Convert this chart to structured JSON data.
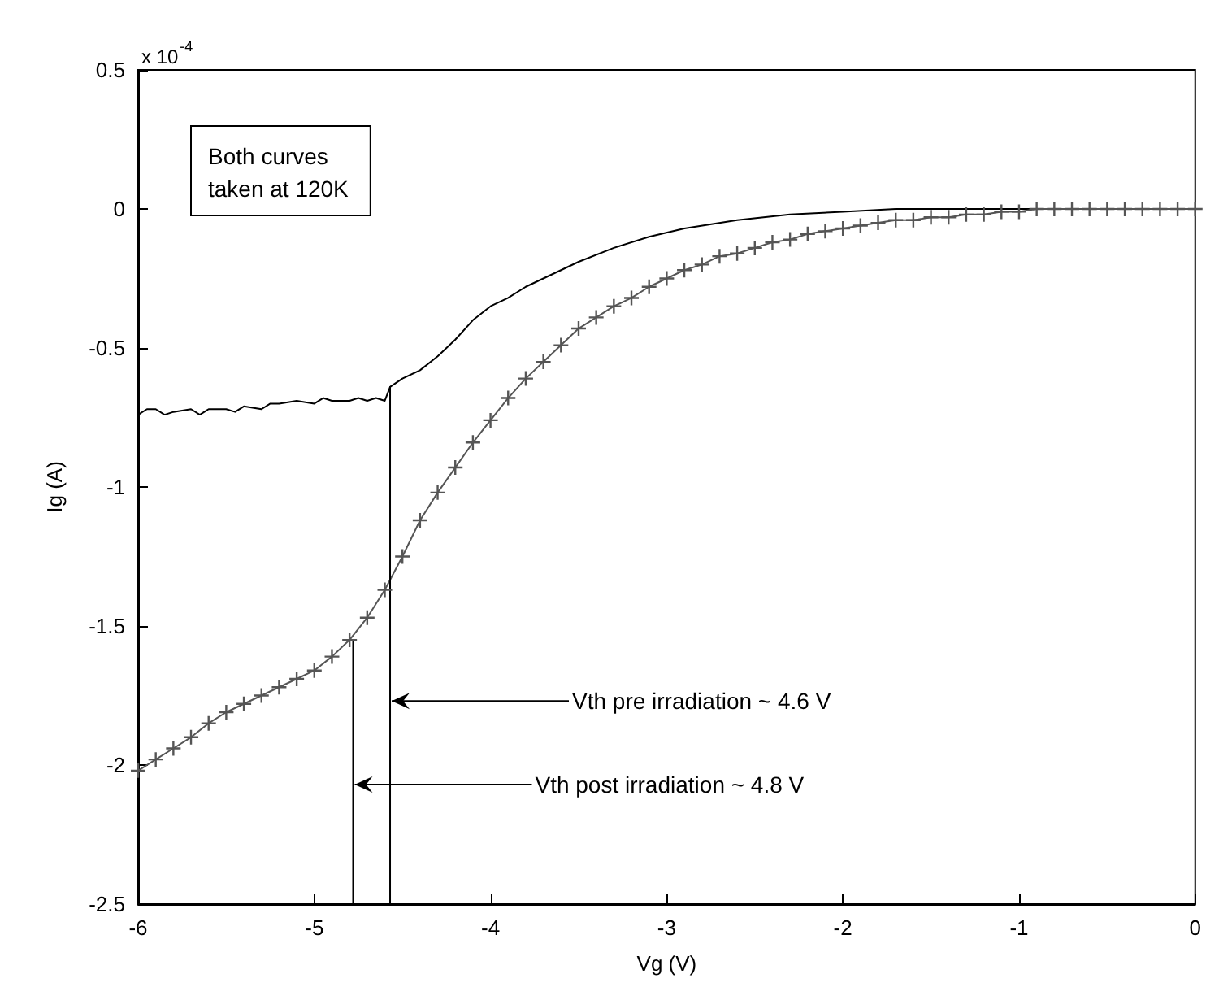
{
  "chart_data": {
    "type": "line",
    "xlabel": "Vg (V)",
    "ylabel": "Ig (A)",
    "xlim": [
      -6,
      0
    ],
    "xticks": [
      -6,
      -5,
      -4,
      -3,
      -2,
      -1,
      0
    ],
    "ylim": [
      -2.5,
      0.5
    ],
    "yticks": [
      -2.5,
      -2,
      -1.5,
      -1,
      -0.5,
      0,
      0.5
    ],
    "grid": false,
    "annotations": [
      "x 10$^{-4}$",
      "Both curves\ntaken at 120K",
      {
        "text": "Vth pre irradiation ~ 4.6 V",
        "x": -4.57,
        "y": -1.77
      },
      {
        "text": "Vth post irradiation ~ 4.8 V",
        "x": -4.78,
        "y": -2.07
      }
    ],
    "series": [
      {
        "color": "#000000",
        "marker": "none",
        "x": [
          -6,
          -5.95,
          -5.9,
          -5.85,
          -5.8,
          -5.7,
          -5.65,
          -5.6,
          -5.5,
          -5.45,
          -5.4,
          -5.3,
          -5.25,
          -5.2,
          -5.1,
          -5.0,
          -4.95,
          -4.9,
          -4.8,
          -4.75,
          -4.7,
          -4.65,
          -4.6,
          -4.57,
          -4.5,
          -4.4,
          -4.3,
          -4.2,
          -4.1,
          -4.0,
          -3.9,
          -3.8,
          -3.7,
          -3.5,
          -3.3,
          -3.1,
          -2.9,
          -2.6,
          -2.3,
          -2.0,
          -1.7,
          -1.4,
          -1.0,
          -0.5,
          0
        ],
        "values": [
          -0.74,
          -0.72,
          -0.72,
          -0.74,
          -0.73,
          -0.72,
          -0.74,
          -0.72,
          -0.72,
          -0.73,
          -0.71,
          -0.72,
          -0.7,
          -0.7,
          -0.69,
          -0.7,
          -0.68,
          -0.69,
          -0.69,
          -0.68,
          -0.69,
          -0.68,
          -0.69,
          -0.64,
          -0.61,
          -0.58,
          -0.53,
          -0.47,
          -0.4,
          -0.35,
          -0.32,
          -0.28,
          -0.25,
          -0.19,
          -0.14,
          -0.1,
          -0.07,
          -0.04,
          -0.02,
          -0.01,
          0,
          0,
          0,
          0,
          0
        ]
      },
      {
        "color": "#555555",
        "marker": "cross",
        "x": [
          -6.0,
          -5.9,
          -5.8,
          -5.7,
          -5.6,
          -5.5,
          -5.4,
          -5.3,
          -5.2,
          -5.1,
          -5.0,
          -4.9,
          -4.8,
          -4.7,
          -4.6,
          -4.5,
          -4.4,
          -4.3,
          -4.2,
          -4.1,
          -4.0,
          -3.9,
          -3.8,
          -3.7,
          -3.6,
          -3.5,
          -3.4,
          -3.3,
          -3.2,
          -3.1,
          -3.0,
          -2.9,
          -2.8,
          -2.7,
          -2.6,
          -2.5,
          -2.4,
          -2.3,
          -2.2,
          -2.1,
          -2.0,
          -1.9,
          -1.8,
          -1.7,
          -1.6,
          -1.5,
          -1.4,
          -1.3,
          -1.2,
          -1.1,
          -1.0,
          -0.9,
          -0.8,
          -0.7,
          -0.6,
          -0.5,
          -0.4,
          -0.3,
          -0.2,
          -0.1,
          0
        ],
        "values": [
          -2.02,
          -1.98,
          -1.94,
          -1.9,
          -1.85,
          -1.81,
          -1.78,
          -1.75,
          -1.72,
          -1.69,
          -1.66,
          -1.61,
          -1.55,
          -1.47,
          -1.37,
          -1.25,
          -1.12,
          -1.02,
          -0.93,
          -0.84,
          -0.76,
          -0.68,
          -0.61,
          -0.55,
          -0.49,
          -0.43,
          -0.39,
          -0.35,
          -0.32,
          -0.28,
          -0.25,
          -0.22,
          -0.2,
          -0.17,
          -0.16,
          -0.14,
          -0.12,
          -0.11,
          -0.09,
          -0.08,
          -0.07,
          -0.06,
          -0.05,
          -0.04,
          -0.04,
          -0.03,
          -0.03,
          -0.02,
          -0.02,
          -0.01,
          -0.01,
          0,
          0,
          0,
          0,
          0,
          0,
          0,
          0,
          0,
          0
        ]
      },
      {
        "color": "#000000",
        "marker": "none",
        "x": [
          -4.57,
          -4.57
        ],
        "values": [
          -2.5,
          -0.64
        ]
      },
      {
        "color": "#000000",
        "marker": "none",
        "x": [
          -4.78,
          -4.78
        ],
        "values": [
          -2.5,
          -1.55
        ]
      }
    ]
  }
}
